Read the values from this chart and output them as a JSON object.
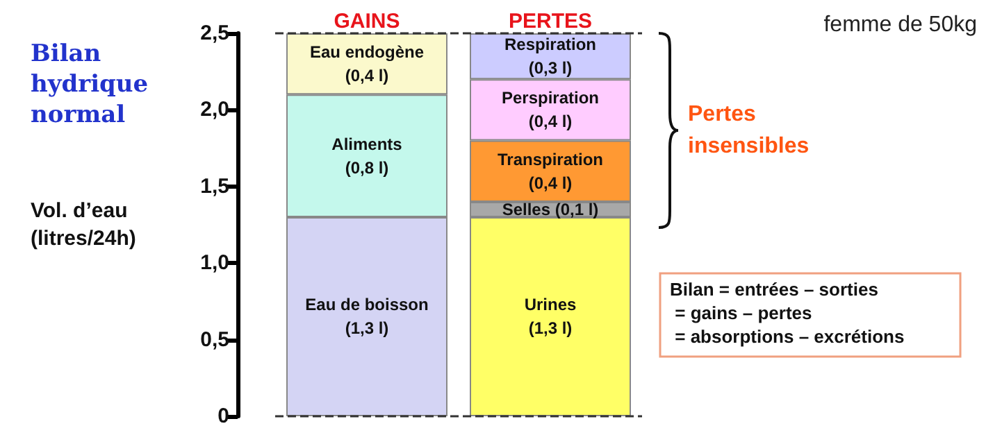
{
  "chart_data": {
    "type": "bar",
    "stacked": true,
    "title": "Bilan hydrique normal",
    "ylabel": "Vol. d’eau\n(litres/24h)",
    "categories": [
      "GAINS",
      "PERTES"
    ],
    "series": [
      {
        "color": "#d4d4f4",
        "values": [
          1.3,
          null
        ],
        "value_labels": [
          "Eau de boisson\n(1,3 l)",
          null
        ]
      },
      {
        "color": "#c4f8ec",
        "values": [
          0.8,
          null
        ],
        "value_labels": [
          "Aliments\n(0,8 l)",
          null
        ]
      },
      {
        "color": "#fbf9cc",
        "values": [
          0.4,
          null
        ],
        "value_labels": [
          "Eau endogène\n(0,4 l)",
          null
        ]
      },
      {
        "color": "#ffff66",
        "values": [
          null,
          1.3
        ],
        "value_labels": [
          null,
          "Urines\n(1,3 l)"
        ]
      },
      {
        "color": "#a8a8a8",
        "values": [
          null,
          0.1
        ],
        "value_labels": [
          null,
          "Selles (0,1 l)"
        ]
      },
      {
        "color": "#ff9933",
        "values": [
          null,
          0.4
        ],
        "value_labels": [
          null,
          "Transpiration\n(0,4 l)"
        ]
      },
      {
        "color": "#ffccff",
        "values": [
          null,
          0.4
        ],
        "value_labels": [
          null,
          "Perspiration\n(0,4 l)"
        ]
      },
      {
        "color": "#ccccff",
        "values": [
          null,
          0.3
        ],
        "value_labels": [
          null,
          "Respiration\n(0,3 l)"
        ]
      }
    ],
    "ylim": [
      0,
      2.5
    ],
    "yticks": [
      0,
      {
        "value": 0.5,
        "label": "0,5"
      },
      {
        "value": 1,
        "label": "1,0"
      },
      {
        "value": 1.5,
        "label": "1,5"
      },
      {
        "value": 2,
        "label": "2,0"
      },
      {
        "value": 2.5,
        "label": "2,5"
      }
    ],
    "ref_lines": [
      {
        "axis": "y",
        "value": 0,
        "color": "#333333",
        "line_style": "dashed"
      },
      {
        "axis": "y",
        "value": 2.5,
        "color": "#333333",
        "line_style": "dashed"
      }
    ],
    "annotations": [
      "femme de 50kg",
      "Pertes insensibles",
      "Bilan = entrées – sorties\n = gains – pertes\n = absorptions – excrétions"
    ],
    "grid": false
  }
}
